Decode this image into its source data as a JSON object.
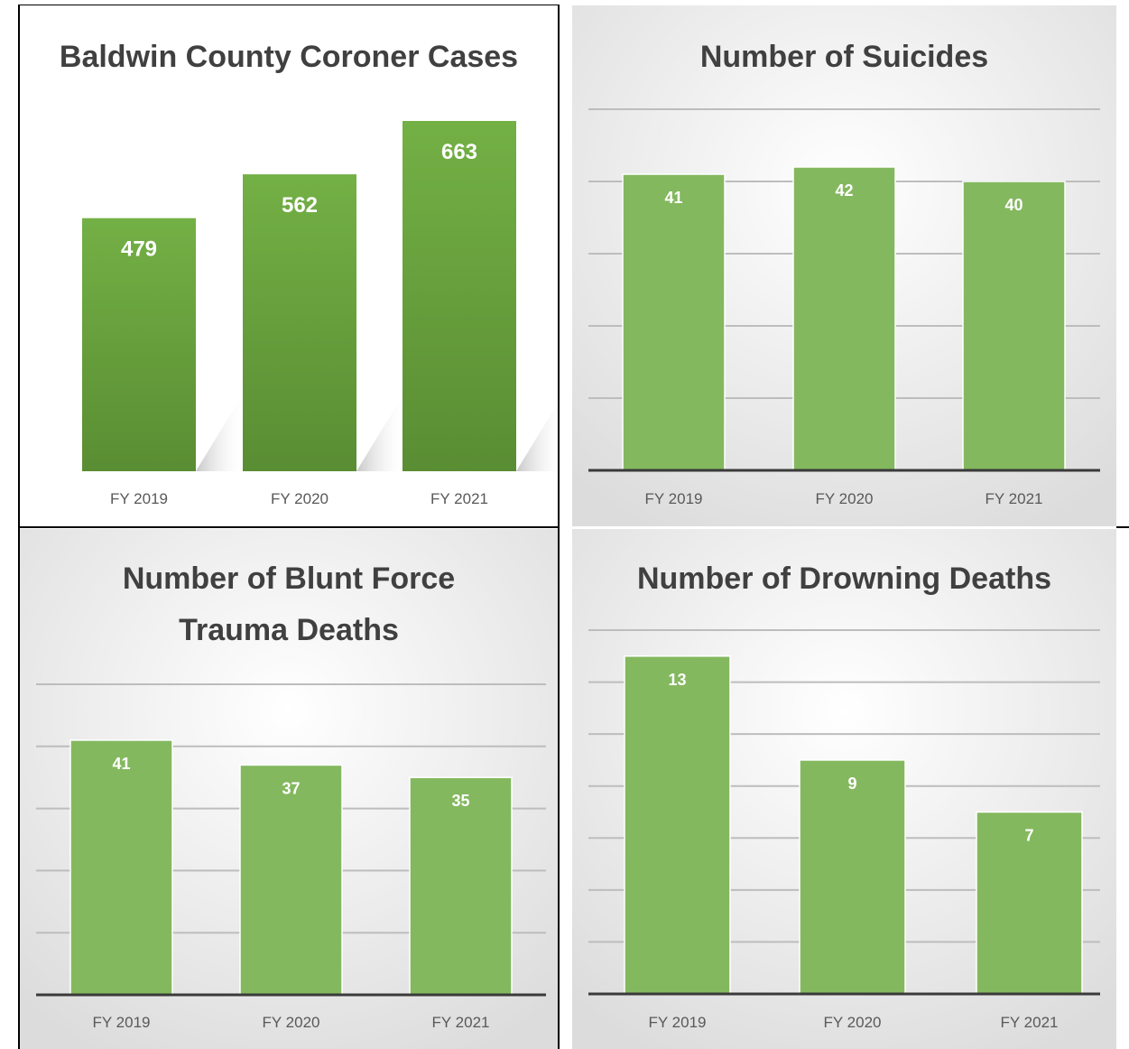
{
  "chart_data": [
    {
      "type": "bar",
      "title": "Baldwin County Coroner Cases",
      "categories": [
        "FY 2019",
        "FY 2020",
        "FY 2021"
      ],
      "values": [
        479,
        562,
        663
      ],
      "ylim": [
        0,
        663
      ],
      "grid": false,
      "style": "3d",
      "colors": {
        "bar_top": "#73b045",
        "bar_bottom": "#5a8d33",
        "background": "#ffffff"
      }
    },
    {
      "type": "bar",
      "title": "Number of Suicides",
      "categories": [
        "FY 2019",
        "FY 2020",
        "FY 2021"
      ],
      "values": [
        41,
        42,
        40
      ],
      "ylim": [
        0,
        50
      ],
      "grid": true,
      "gridlines": 5,
      "colors": {
        "bar": "#84b85f",
        "background": "#dcdcdc"
      }
    },
    {
      "type": "bar",
      "title": "Number of Blunt Force Trauma Deaths",
      "categories": [
        "FY 2019",
        "FY 2020",
        "FY 2021"
      ],
      "values": [
        41,
        37,
        35
      ],
      "ylim": [
        0,
        50
      ],
      "grid": true,
      "gridlines": 5,
      "colors": {
        "bar": "#84b85f",
        "background": "#dcdcdc"
      }
    },
    {
      "type": "bar",
      "title": "Number of Drowning Deaths",
      "categories": [
        "FY 2019",
        "FY 2020",
        "FY 2021"
      ],
      "values": [
        13,
        9,
        7
      ],
      "ylim": [
        0,
        14
      ],
      "grid": true,
      "gridlines": 7,
      "colors": {
        "bar": "#84b85f",
        "background": "#dcdcdc"
      }
    }
  ]
}
